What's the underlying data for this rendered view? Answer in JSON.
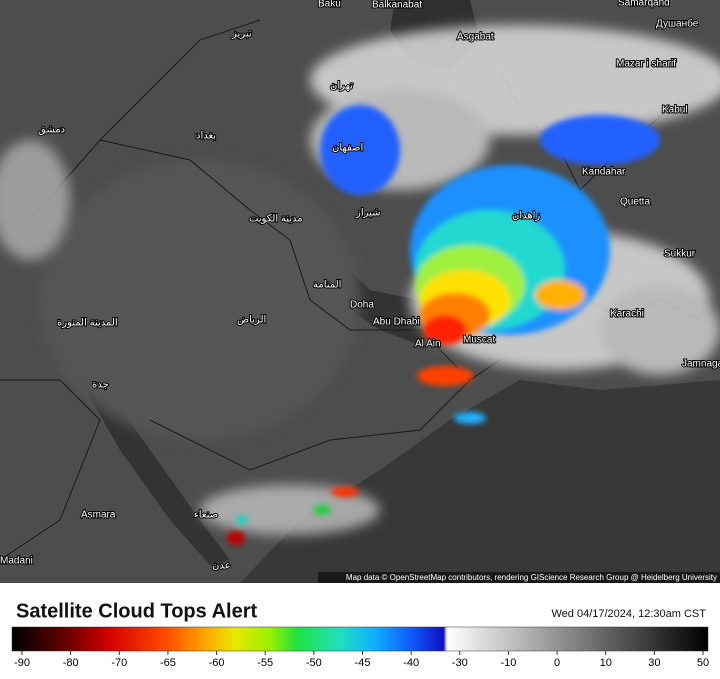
{
  "map": {
    "cities": [
      "Baku",
      "Balkanabat",
      "Samarqand",
      "Душанбе",
      "Asgabat",
      "Mazar i sharif",
      "Kabul",
      "Kandahar",
      "Quetta",
      "Sukkur",
      "Karachi",
      "Jamnagar",
      "Doha",
      "Abu Dhabi",
      "Al Ain",
      "Muscat",
      "Asmara",
      "Madani",
      "تبریز",
      "تهران",
      "اصفهان",
      "شیراز",
      "بغداد",
      "دمشق",
      "الرياض",
      "مدينة الكويت",
      "المنامة",
      "جدة",
      "صنعاء",
      "عدن",
      "المدينة المنورة",
      "زاهدان"
    ],
    "attribution": "Map data © OpenStreetMap contributors, rendering GIScience Research Group @ Heidelberg University"
  },
  "legend": {
    "title": "Satellite Cloud Tops Alert",
    "timestamp": "Wed 04/17/2024, 12:30am CST",
    "ticks": [
      -90,
      -80,
      -70,
      -65,
      -60,
      -55,
      -50,
      -45,
      -40,
      -30,
      -10,
      0,
      10,
      30,
      50
    ]
  }
}
